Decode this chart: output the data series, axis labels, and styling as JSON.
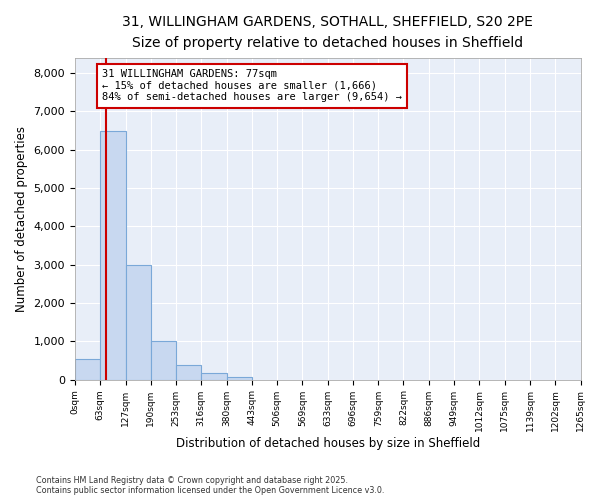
{
  "title_line1": "31, WILLINGHAM GARDENS, SOTHALL, SHEFFIELD, S20 2PE",
  "title_line2": "Size of property relative to detached houses in Sheffield",
  "xlabel": "Distribution of detached houses by size in Sheffield",
  "ylabel": "Number of detached properties",
  "bin_edges": [
    0,
    63,
    127,
    190,
    253,
    316,
    380,
    443,
    506,
    569,
    633,
    696,
    759,
    822,
    886,
    949,
    1012,
    1075,
    1139,
    1202,
    1265
  ],
  "bin_labels": [
    "0sqm",
    "63sqm",
    "127sqm",
    "190sqm",
    "253sqm",
    "316sqm",
    "380sqm",
    "443sqm",
    "506sqm",
    "569sqm",
    "633sqm",
    "696sqm",
    "759sqm",
    "822sqm",
    "886sqm",
    "949sqm",
    "1012sqm",
    "1075sqm",
    "1139sqm",
    "1202sqm",
    "1265sqm"
  ],
  "bar_heights": [
    550,
    6500,
    3000,
    1000,
    380,
    175,
    75,
    0,
    0,
    0,
    0,
    0,
    0,
    0,
    0,
    0,
    0,
    0,
    0,
    0
  ],
  "bar_color": "#c8d8f0",
  "bar_edge_color": "#7aa8d8",
  "property_size": 77,
  "property_label": "31 WILLINGHAM GARDENS: 77sqm",
  "pct_smaller": "15% of detached houses are smaller (1,666)",
  "pct_larger": "84% of semi-detached houses are larger (9,654)",
  "red_line_color": "#cc0000",
  "annotation_box_color": "#cc0000",
  "ylim": [
    0,
    8400
  ],
  "yticks": [
    0,
    1000,
    2000,
    3000,
    4000,
    5000,
    6000,
    7000,
    8000
  ],
  "footer_line1": "Contains HM Land Registry data © Crown copyright and database right 2025.",
  "footer_line2": "Contains public sector information licensed under the Open Government Licence v3.0.",
  "fig_background": "#ffffff",
  "plot_background": "#e8eef8",
  "grid_color": "#ffffff",
  "title_fontsize": 10,
  "subtitle_fontsize": 9
}
